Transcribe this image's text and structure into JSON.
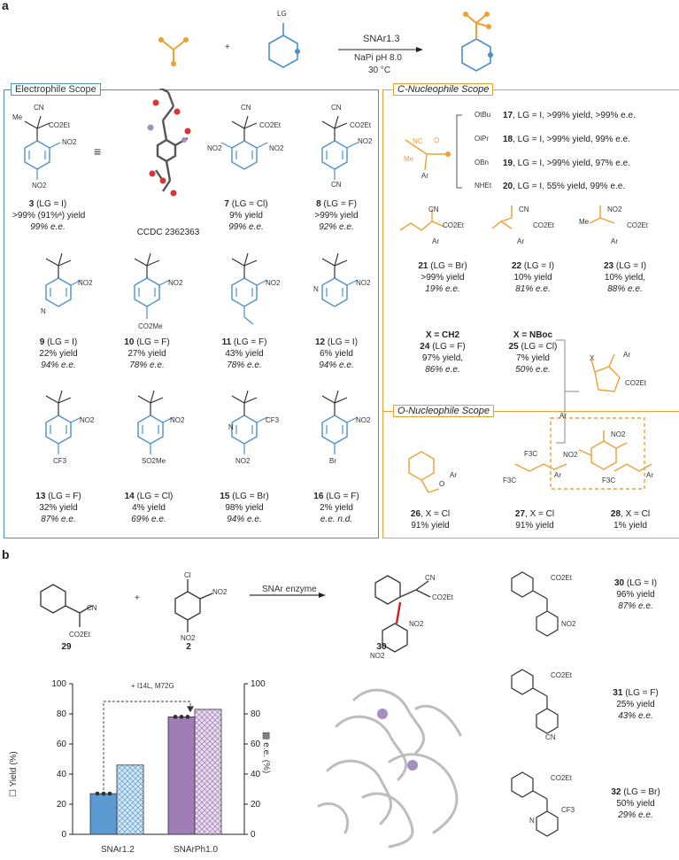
{
  "panel_a": {
    "letter": "a",
    "scheme": {
      "lg_label": "LG",
      "enzyme": "SNAr1.3",
      "conditions_1": "NaPi pH 8.0",
      "conditions_2": "30 °C",
      "plus": "+"
    },
    "electrophile_title": "Electrophile Scope",
    "c_nucleophile_title": "C-Nucleophile Scope",
    "o_nucleophile_title": "O-Nucleophile Scope",
    "struct_labels": {
      "me": "Me",
      "cn": "CN",
      "co2et": "CO2Et",
      "no2": "NO2",
      "n": "N",
      "cf3": "CF3",
      "br": "Br",
      "co2me": "CO2Me",
      "so2me": "SO2Me",
      "nc": "NC",
      "ar": "Ar",
      "x": "X",
      "o": "O",
      "f3c": "F3C",
      "f": "F",
      "equiv": "≡"
    },
    "electrophiles": [
      {
        "id": "3",
        "lg": "(LG = I)",
        "yield": ">99% (91%ᵃ) yield",
        "ee": "99% e.e."
      },
      {
        "id": "",
        "lg": "CCDC 2362363",
        "yield": "",
        "ee": ""
      },
      {
        "id": "7",
        "lg": " (LG = Cl)",
        "yield": "9% yield",
        "ee": "99% e.e."
      },
      {
        "id": "8",
        "lg": "(LG = F)",
        "yield": ">99% yield",
        "ee": "92% e.e."
      },
      {
        "id": "9",
        "lg": "(LG = I)",
        "yield": "22% yield",
        "ee": "94% e.e."
      },
      {
        "id": "10",
        "lg": "(LG = F)",
        "yield": "27% yield",
        "ee": "78% e.e."
      },
      {
        "id": "11",
        "lg": "(LG = F)",
        "yield": "43% yield",
        "ee": "78% e.e."
      },
      {
        "id": "12",
        "lg": "(LG = I)",
        "yield": "6% yield",
        "ee": "94% e.e."
      },
      {
        "id": "13",
        "lg": "(LG = F)",
        "yield": "32% yield",
        "ee": "87% e.e."
      },
      {
        "id": "14",
        "lg": "(LG = Cl)",
        "yield": "4% yield",
        "ee": "69% e.e."
      },
      {
        "id": "15",
        "lg": "(LG = Br)",
        "yield": "98% yield",
        "ee": "94% e.e."
      },
      {
        "id": "16",
        "lg": "(LG = F)",
        "yield": "2% yield",
        "ee": "e.e. n.d."
      }
    ],
    "esters": [
      {
        "group": "OtBu",
        "id": "17",
        "text": ", LG = I, >99% yield, >99% e.e."
      },
      {
        "group": "OiPr",
        "id": "18",
        "text": ", LG = I, >99% yield, 99% e.e."
      },
      {
        "group": "OBn",
        "id": "19",
        "text": ", LG = I, >99% yield, 97% e.e."
      },
      {
        "group": "NHEt",
        "id": "20",
        "text": ", LG = I, 55% yield, 99% e.e."
      }
    ],
    "c_nucleophiles": [
      {
        "id": "21",
        "lg": "(LG = Br)",
        "yield": ">99% yield",
        "ee": "19% e.e."
      },
      {
        "id": "22",
        "lg": "(LG = I)",
        "yield": "10% yield",
        "ee": "81% e.e."
      },
      {
        "id": "23",
        "lg": "(LG = I)",
        "yield": "10% yield,",
        "ee": "88% e.e."
      },
      {
        "head": "X = CH2",
        "id": "24",
        "lg": "(LG = F)",
        "yield": "97% yield,",
        "ee": "86% e.e."
      },
      {
        "head": "X = NBoc",
        "id": "25",
        "lg": "(LG = Cl)",
        "yield": "7% yield",
        "ee": "50% e.e."
      }
    ],
    "o_nucleophiles": [
      {
        "id": "26",
        "lg": ", X = Cl",
        "yield": "91% yield"
      },
      {
        "id": "27",
        "lg": ", X = Cl",
        "yield": "91% yield"
      },
      {
        "id": "28",
        "lg": ", X = Cl",
        "yield": "1% yield"
      }
    ]
  },
  "panel_b": {
    "letter": "b",
    "reagent_1": "29",
    "reagent_2": "2",
    "product": "30",
    "enzyme": "SNAr enzyme",
    "plus": "+",
    "cl": "Cl",
    "products": [
      {
        "id": "30",
        "lg": "(LG = I)",
        "yield": "96% yield",
        "ee": "87% e.e."
      },
      {
        "id": "31",
        "lg": "(LG = F)",
        "yield": "25% yield",
        "ee": "43% e.e."
      },
      {
        "id": "32",
        "lg": "(LG = Br)",
        "yield": "50% yield",
        "ee": "29% e.e."
      }
    ]
  },
  "chart_data": {
    "type": "bar",
    "categories": [
      "SNAr1.2",
      "SNArPh1.0"
    ],
    "series": [
      {
        "name": "Yield (%)",
        "values": [
          27,
          78
        ],
        "color": "#5b9bd1"
      },
      {
        "name": "e.e. (%)",
        "values": [
          46,
          83
        ],
        "color": "#a07db6"
      }
    ],
    "replicates": [
      [
        27,
        27,
        27
      ],
      [
        78,
        78,
        78
      ]
    ],
    "annotation": "+ I14L, M72G",
    "ylabel_left": "Yield (%)",
    "ylabel_right": "e.e. (%)",
    "ylim": [
      0,
      100
    ],
    "yticks": [
      0,
      20,
      40,
      60,
      80,
      100
    ]
  },
  "colors": {
    "blue": "#4a8fd0",
    "orange": "#f0a030",
    "purple": "#a07db6",
    "red": "#d62020"
  }
}
